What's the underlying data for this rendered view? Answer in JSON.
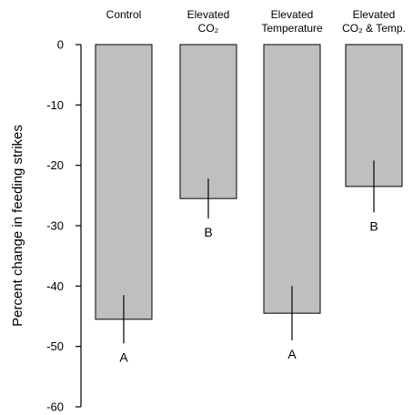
{
  "colors": {
    "bar_fill": "#bfbfbf",
    "bar_stroke": "#000000",
    "axis": "#000000"
  },
  "chart_data": {
    "type": "bar",
    "ylabel": "Percent change in feeding strikes",
    "xlabel": "",
    "ylim": [
      -60,
      0
    ],
    "yticks": [
      0,
      -10,
      -20,
      -30,
      -40,
      -50,
      -60
    ],
    "grid": false,
    "categories": [
      {
        "lines": [
          "Control"
        ]
      },
      {
        "lines": [
          "Elevated",
          "CO₂"
        ]
      },
      {
        "lines": [
          "Elevated",
          "Temperature"
        ]
      },
      {
        "lines": [
          "Elevated",
          "CO₂ & Temp."
        ]
      }
    ],
    "values": [
      -45.5,
      -25.5,
      -44.5,
      -23.5
    ],
    "error": [
      4.0,
      3.3,
      4.5,
      4.3
    ],
    "significance_letters": [
      "A",
      "B",
      "A",
      "B"
    ]
  }
}
